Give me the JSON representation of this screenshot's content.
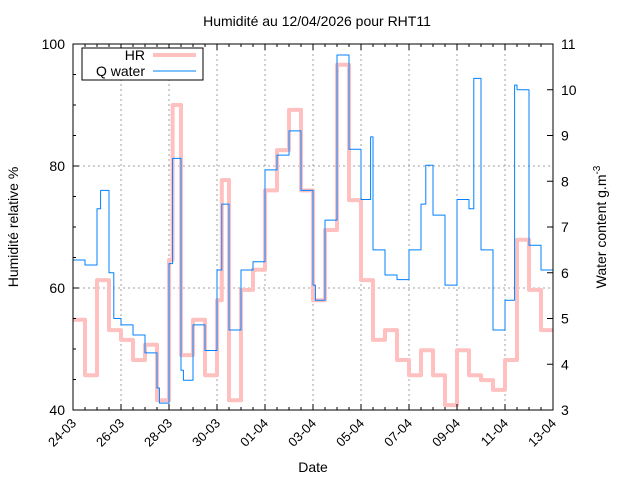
{
  "chart_data": {
    "type": "line",
    "title": "Humidité au 12/04/2026 pour RHT11",
    "xlabel": "Date",
    "ylabel": "Humidité relative %",
    "y2label": "Water content g.m",
    "y2label_sup": "-3",
    "x_unit": "days since 24-03",
    "xlim": [
      0,
      20
    ],
    "ylim": [
      40,
      100
    ],
    "y2lim": [
      3,
      11
    ],
    "grid": true,
    "legend_position": "top-left",
    "x_ticks": [
      {
        "value": 0,
        "label": "24-03"
      },
      {
        "value": 2,
        "label": "26-03"
      },
      {
        "value": 4,
        "label": "28-03"
      },
      {
        "value": 6,
        "label": "30-03"
      },
      {
        "value": 8,
        "label": "01-04"
      },
      {
        "value": 10,
        "label": "03-04"
      },
      {
        "value": 12,
        "label": "05-04"
      },
      {
        "value": 14,
        "label": "07-04"
      },
      {
        "value": 16,
        "label": "09-04"
      },
      {
        "value": 18,
        "label": "11-04"
      },
      {
        "value": 20,
        "label": "13-04"
      }
    ],
    "y_ticks": [
      40,
      60,
      80,
      100
    ],
    "y2_ticks": [
      3,
      4,
      5,
      6,
      7,
      8,
      9,
      10,
      11
    ],
    "series": [
      {
        "name": "HR",
        "axis": "y",
        "color": "#ffc0c0",
        "x": [
          0,
          0.5,
          1,
          1.5,
          2,
          2.5,
          3,
          3.5,
          4,
          4.15,
          4.5,
          5,
          5.5,
          6,
          6.2,
          6.5,
          7,
          7.5,
          8,
          8.5,
          9,
          9.5,
          10,
          10.5,
          11,
          11.5,
          12,
          12.5,
          13,
          13.5,
          14,
          14.5,
          15,
          15.5,
          16,
          16.5,
          17,
          17.5,
          18,
          18.5,
          19,
          19.5,
          20
        ],
        "values": [
          54.8,
          45.7,
          61.3,
          53.1,
          51.5,
          48.2,
          50.7,
          41.6,
          64.6,
          90,
          49,
          54.8,
          45.7,
          58,
          77.7,
          41.6,
          59.7,
          63,
          76,
          82.6,
          89.2,
          76,
          58,
          69.5,
          96.6,
          74.4,
          61.3,
          51.5,
          53.1,
          48.2,
          45.7,
          49.8,
          45.7,
          40.8,
          49.8,
          45.7,
          44.9,
          43.3,
          48.2,
          67.9,
          59.7,
          53.1,
          53.1
        ]
      },
      {
        "name": "Q water",
        "axis": "y2",
        "color": "#0080ff",
        "x": [
          0,
          0.5,
          1,
          1.15,
          1.5,
          1.7,
          2,
          2.5,
          3,
          3.5,
          3.6,
          4,
          4.15,
          4.5,
          4.6,
          5,
          5.5,
          6,
          6.2,
          6.5,
          7,
          7.5,
          8,
          8.5,
          9,
          9.5,
          10,
          10.1,
          10.5,
          11,
          11.5,
          12,
          12.4,
          12.5,
          13,
          13.5,
          14,
          14.5,
          14.7,
          15,
          15.5,
          16,
          16.5,
          16.7,
          17,
          17.5,
          18,
          18.4,
          18.5,
          19,
          19.5,
          20
        ],
        "values": [
          6.28,
          6.17,
          7.4,
          7.8,
          6.0,
          5.0,
          4.86,
          4.64,
          4.25,
          3.48,
          3.15,
          6.2,
          8.5,
          3.87,
          3.65,
          4.86,
          4.3,
          6.06,
          7.5,
          4.75,
          6.06,
          6.24,
          8.25,
          8.57,
          9.1,
          7.8,
          5.73,
          5.4,
          7.15,
          10.76,
          8.7,
          7.6,
          8.97,
          6.5,
          5.95,
          5.85,
          6.5,
          7.5,
          8.35,
          7.26,
          5.73,
          7.6,
          7.4,
          10.25,
          6.5,
          4.75,
          5.4,
          10.1,
          10.0,
          6.6,
          6.06,
          6.7
        ]
      }
    ]
  }
}
